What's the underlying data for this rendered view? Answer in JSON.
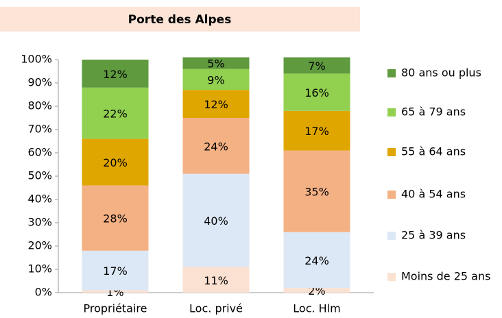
{
  "chart_data": {
    "type": "stacked_bar",
    "title": "Porte des Alpes",
    "categories": [
      "Propriétaire",
      "Loc. privé",
      "Loc. Hlm"
    ],
    "series": [
      {
        "name": "Moins de 25 ans",
        "color": "#fbe1d1",
        "values": [
          1,
          11,
          2
        ],
        "value_labels": [
          "1%",
          "11%",
          "2%"
        ]
      },
      {
        "name": "25 à 39 ans",
        "color": "#dce8f5",
        "values": [
          17,
          40,
          24
        ],
        "value_labels": [
          "17%",
          "40%",
          "24%"
        ]
      },
      {
        "name": "40 à 54 ans",
        "color": "#f4b184",
        "values": [
          28,
          24,
          35
        ],
        "value_labels": [
          "28%",
          "24%",
          "35%"
        ]
      },
      {
        "name": "55 à 64 ans",
        "color": "#e0a600",
        "values": [
          20,
          12,
          17
        ],
        "value_labels": [
          "20%",
          "12%",
          "17%"
        ]
      },
      {
        "name": "65 à 79 ans",
        "color": "#92d050",
        "values": [
          22,
          9,
          16
        ],
        "value_labels": [
          "22%",
          "9%",
          "16%"
        ]
      },
      {
        "name": "80 ans ou plus",
        "color": "#5f9a3f",
        "values": [
          12,
          5,
          7
        ],
        "value_labels": [
          "12%",
          "5%",
          "7%"
        ]
      }
    ],
    "ylim": [
      0,
      100
    ],
    "yticks": [
      {
        "value": 0,
        "label": "0%"
      },
      {
        "value": 10,
        "label": "10%"
      },
      {
        "value": 20,
        "label": "20%"
      },
      {
        "value": 30,
        "label": "30%"
      },
      {
        "value": 40,
        "label": "40%"
      },
      {
        "value": 50,
        "label": "50%"
      },
      {
        "value": 60,
        "label": "60%"
      },
      {
        "value": 70,
        "label": "70%"
      },
      {
        "value": 80,
        "label": "80%"
      },
      {
        "value": 90,
        "label": "90%"
      },
      {
        "value": 100,
        "label": "100%"
      }
    ],
    "legend": "right"
  }
}
